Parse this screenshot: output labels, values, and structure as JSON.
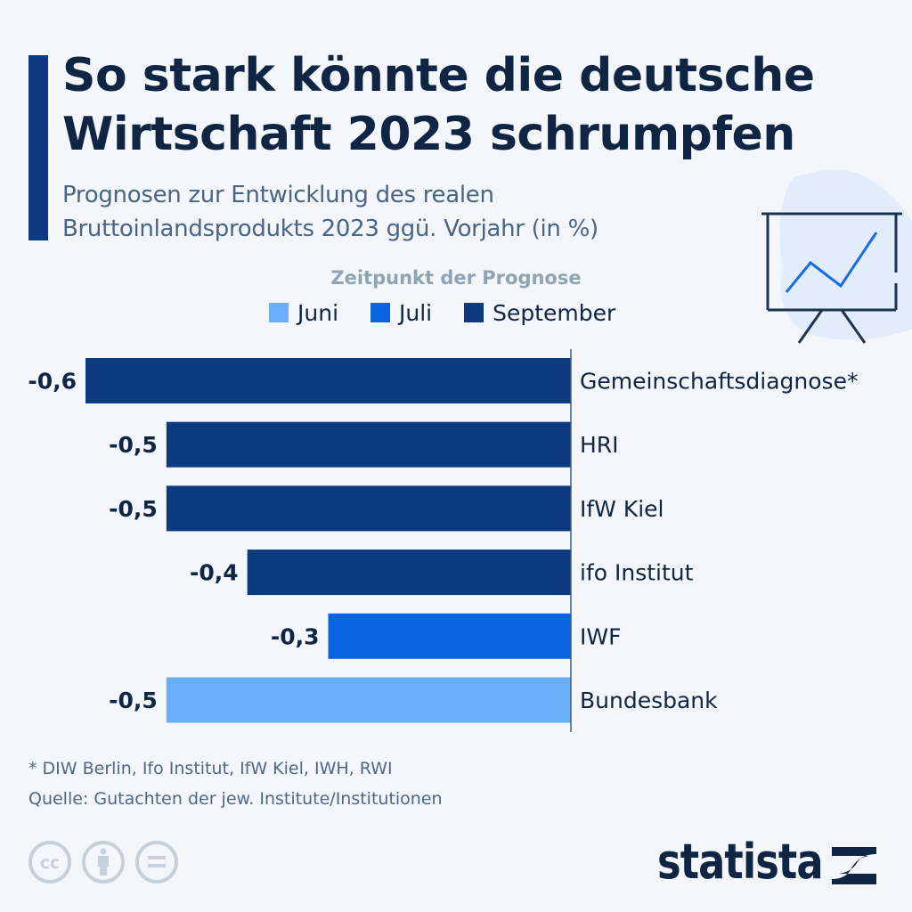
{
  "header": {
    "title_lines": [
      "So stark könnte die deutsche",
      "Wirtschaft 2023 schrumpfen"
    ],
    "subtitle_lines": [
      "Prognosen zur Entwicklung des realen",
      "Bruttoinlandsprodukts 2023 ggü. Vorjahr (in %)"
    ],
    "illustration": "presentation-board-chart-icon"
  },
  "colors": {
    "accent": "#0b3a82",
    "juni": "#69aef8",
    "juli": "#0a63e0",
    "september": "#0b3a7e",
    "text": "#0f2543"
  },
  "chart_data": {
    "type": "bar",
    "orientation": "horizontal",
    "title": "So stark könnte die deutsche Wirtschaft 2023 schrumpfen",
    "subtitle": "Prognosen zur Entwicklung des realen Bruttoinlandsprodukts 2023 ggü. Vorjahr (in %)",
    "legend_title": "Zeitpunkt der Prognose",
    "legend": [
      {
        "name": "Juni",
        "color": "#69aef8"
      },
      {
        "name": "Juli",
        "color": "#0a63e0"
      },
      {
        "name": "September",
        "color": "#0b3a7e"
      }
    ],
    "legend_position": "top-center",
    "categories": [
      "Gemeinschaftsdiagnose*",
      "HRI",
      "IfW Kiel",
      "ifo Institut",
      "IWF",
      "Bundesbank"
    ],
    "values": [
      -0.6,
      -0.5,
      -0.5,
      -0.4,
      -0.3,
      -0.5
    ],
    "value_labels": [
      "-0,6",
      "-0,5",
      "-0,5",
      "-0,4",
      "-0,3",
      "-0,5"
    ],
    "series_of_bar": [
      "September",
      "September",
      "September",
      "September",
      "Juli",
      "Juni"
    ],
    "xlim": [
      -0.6,
      0
    ],
    "xlabel": "",
    "ylabel": "",
    "grid": false
  },
  "footer": {
    "footnote": "* DIW Berlin, Ifo Institut, IfW Kiel, IWH, RWI",
    "source": "Quelle: Gutachten der jew. Institute/Institutionen",
    "license_icons": [
      "cc-icon",
      "attribution-icon",
      "no-derivatives-icon"
    ],
    "brand": "statista"
  }
}
